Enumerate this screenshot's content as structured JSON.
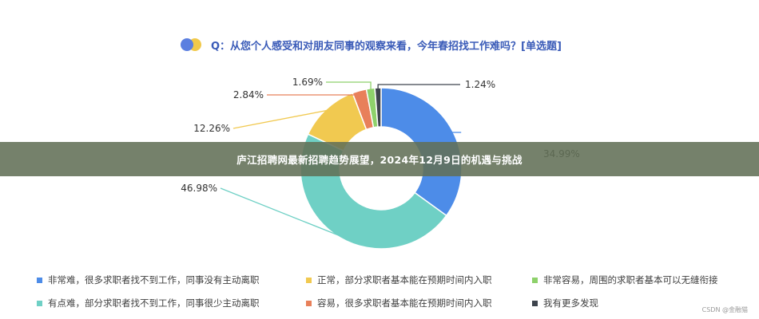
{
  "question": "Q：从您个人感受和对朋友同事的观察来看，今年春招找工作难吗？[单选题]",
  "banner": "庐江招聘网最新招聘趋势展望，2024年12月9日的机遇与挑战",
  "watermark": "CSDN @金融猫",
  "chart_data": {
    "type": "pie",
    "donut": true,
    "categories": [
      "非常难，很多求职者找不到工作，同事没有主动离职",
      "有点难，部分求职者找不到工作，同事很少主动离职",
      "正常，部分求职者基本能在预期时间内入职",
      "容易，很多求职者基本能在预期时间内入职",
      "非常容易，周围的求职者基本可以无缝衔接",
      "我有更多发现"
    ],
    "values": [
      34.99,
      46.98,
      12.26,
      2.84,
      1.69,
      1.24
    ],
    "value_labels": [
      "34.99%",
      "46.98%",
      "12.26%",
      "2.84%",
      "1.69%",
      "1.24%"
    ],
    "colors": [
      "#4d8ce8",
      "#6fd0c5",
      "#f1c950",
      "#e8805a",
      "#8ed16b",
      "#3e444d"
    ],
    "legend": [
      {
        "label": "非常难，很多求职者找不到工作，同事没有主动离职",
        "color": "#4d8ce8"
      },
      {
        "label": "正常，部分求职者基本能在预期时间内入职",
        "color": "#f1c950"
      },
      {
        "label": "非常容易，周围的求职者基本可以无缝衔接",
        "color": "#8ed16b"
      },
      {
        "label": "有点难，部分求职者找不到工作，同事很少主动离职",
        "color": "#6fd0c5"
      },
      {
        "label": "容易，很多求职者基本能在预期时间内入职",
        "color": "#e8805a"
      },
      {
        "label": "我有更多发现",
        "color": "#3e444d"
      }
    ],
    "legend_position": "bottom",
    "title_colors": {
      "question": "#3a5bb8",
      "dot_blue": "#5b7fe0",
      "dot_yellow": "#f1c94b"
    }
  }
}
